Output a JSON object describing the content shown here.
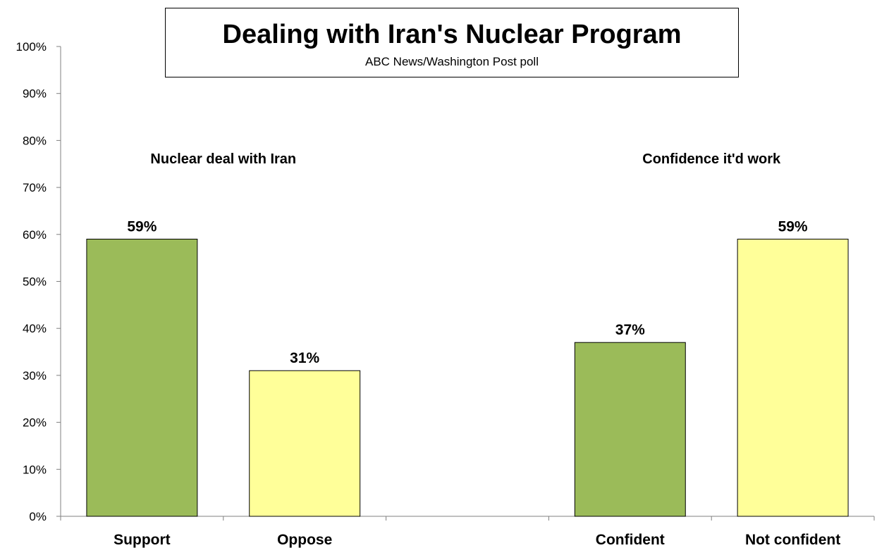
{
  "chart_data": {
    "type": "bar",
    "title": "Dealing with Iran's Nuclear Program",
    "subtitle": "ABC News/Washington  Post poll",
    "categories": [
      "Support",
      "Oppose",
      "",
      "Confident",
      "Not confident"
    ],
    "values": [
      59,
      31,
      null,
      37,
      59
    ],
    "value_labels": [
      "59%",
      "31%",
      "",
      "37%",
      "59%"
    ],
    "bar_colors": [
      "#9bbb59",
      "#ffff99",
      "",
      "#9bbb59",
      "#ffff99"
    ],
    "group_labels": [
      "Nuclear deal with Iran",
      "Confidence it'd work"
    ],
    "ylim": [
      0,
      100
    ],
    "yticks": [
      "0%",
      "10%",
      "20%",
      "30%",
      "40%",
      "50%",
      "60%",
      "70%",
      "80%",
      "90%",
      "100%"
    ],
    "xlabel": "",
    "ylabel": "",
    "grid": false,
    "legend": "none"
  }
}
